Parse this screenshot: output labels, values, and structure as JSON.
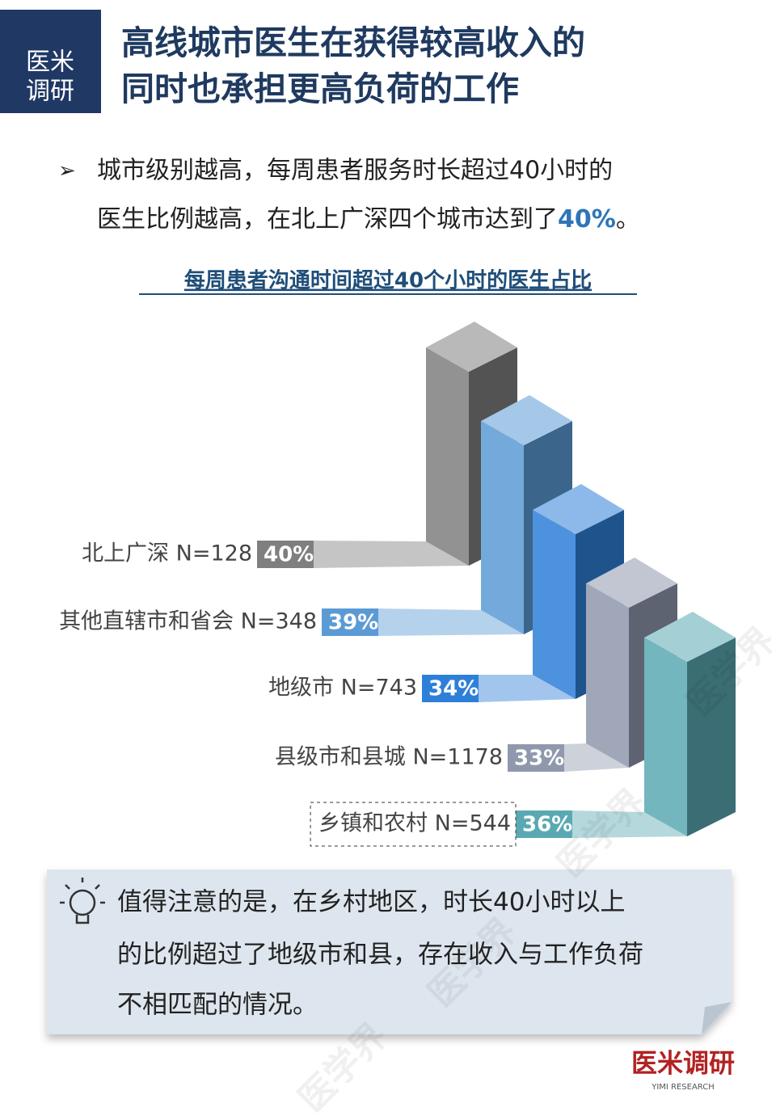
{
  "header": {
    "badge": [
      "医米",
      "调研"
    ],
    "title": [
      "高线城市医生在获得较高收入的",
      "同时也承担更高负荷的工作"
    ]
  },
  "bullet": {
    "line1": "城市级别越高，每周患者服务时长超过40小时的",
    "line2": "医生比例越高，在北上广深四个城市达到了",
    "highlight": "40%",
    "end": "。"
  },
  "chart_data": {
    "type": "bar",
    "title": "每周患者沟通时间超过40个小时的医生占比",
    "categories": [
      "北上广深 N=128",
      "其他直辖市和省会 N=348",
      "地级市 N=743",
      "县级市和县城 N=1178",
      "乡镇和农村 N=544"
    ],
    "values": [
      40,
      39,
      34,
      33,
      36
    ],
    "value_labels": [
      "40%",
      "39%",
      "34%",
      "33%",
      "36%"
    ],
    "colors": [
      "#7f7f7f",
      "#5b9bd5",
      "#2e7fd8",
      "#8f98ad",
      "#5aa9b2"
    ]
  },
  "note": {
    "lines": [
      "值得注意的是，在乡村地区，时长40小时以上",
      "的比例超过了地级市和县，存在收入与工作负荷",
      "不相匹配的情况。"
    ]
  },
  "logo": {
    "name": "医米调研",
    "sub": "YIMI RESEARCH"
  },
  "watermark": "医学界"
}
